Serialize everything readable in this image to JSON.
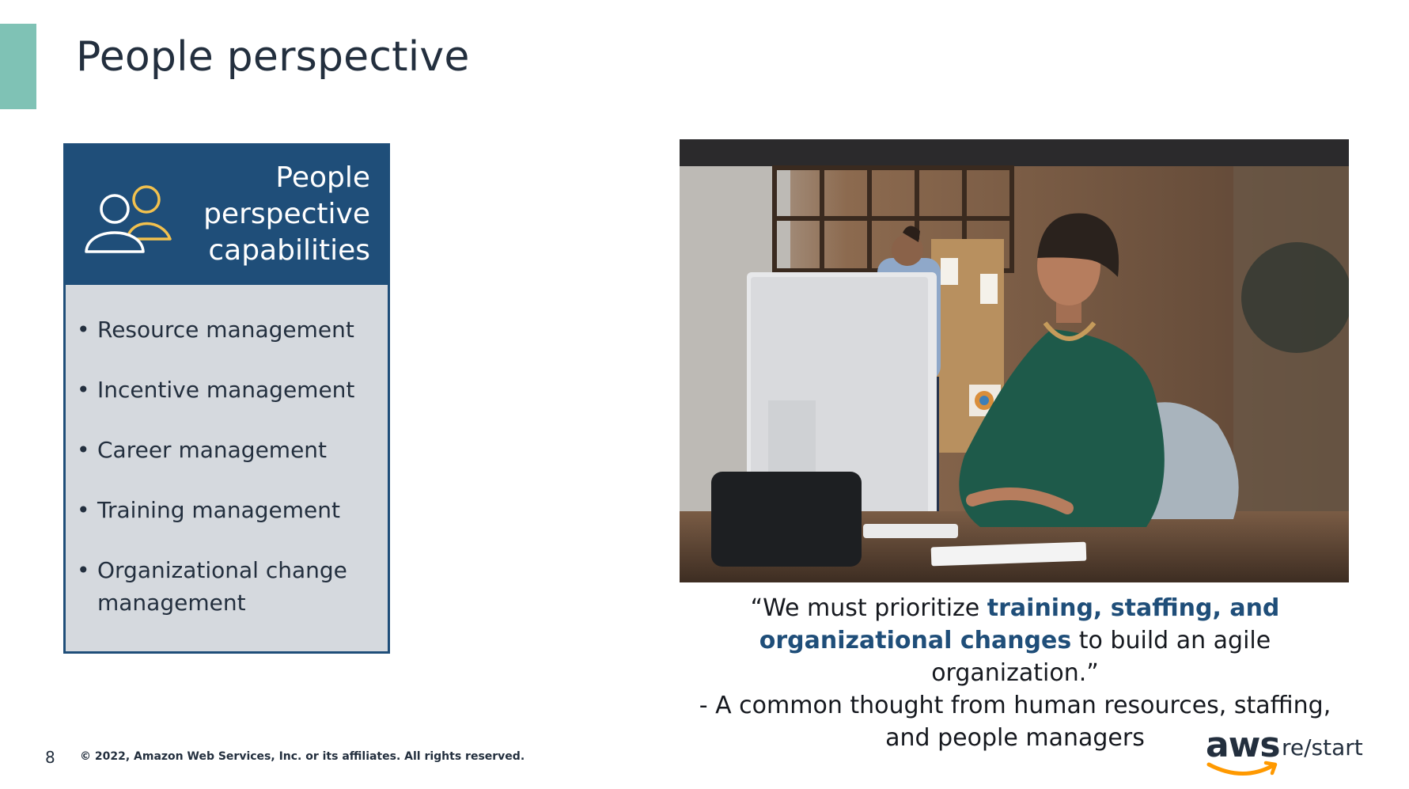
{
  "slide": {
    "title": "People perspective",
    "accent_color": "#7fc2b5"
  },
  "card": {
    "icon": "people-icon",
    "title_lines": [
      "People",
      "perspective",
      "capabilities"
    ],
    "header_color": "#1f4e79",
    "body_color": "#d5d9de",
    "items": [
      "Resource management",
      "Incentive management",
      "Career management",
      "Training management",
      "Organizational change management"
    ]
  },
  "photo": {
    "description_icon": "office-photo"
  },
  "quote": {
    "open": "“We must prioritize ",
    "highlight": "training, staffing, and organizational changes",
    "close": " to build an agile organization.”",
    "attribution": "- A common thought from human resources, staffing, and people managers",
    "highlight_color": "#1f4e79"
  },
  "footer": {
    "page_number": "8",
    "copyright": "© 2022, Amazon Web Services, Inc. or its affiliates. All rights reserved."
  },
  "logo": {
    "brand": "aws",
    "product": "re/start",
    "smile_color": "#ff9900"
  }
}
